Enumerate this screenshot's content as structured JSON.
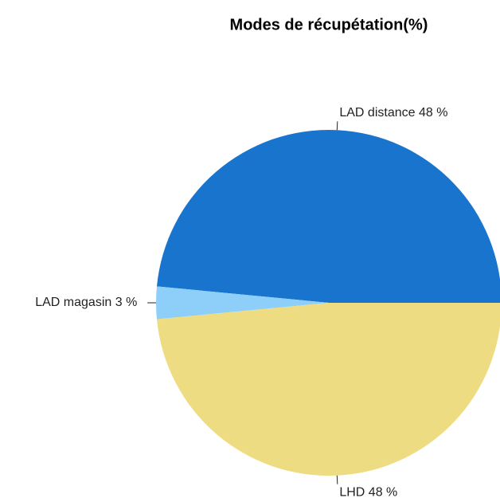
{
  "chart_data": {
    "type": "pie",
    "title": "Modes de récupétation(%)",
    "values": [
      48,
      3,
      48
    ],
    "value_labels": [
      "LAD distance 48 %",
      "LAD magasin 3 %",
      "LHD 48 %"
    ],
    "colors": [
      "#1874cd",
      "#8ecffa",
      "#eedc82"
    ]
  }
}
